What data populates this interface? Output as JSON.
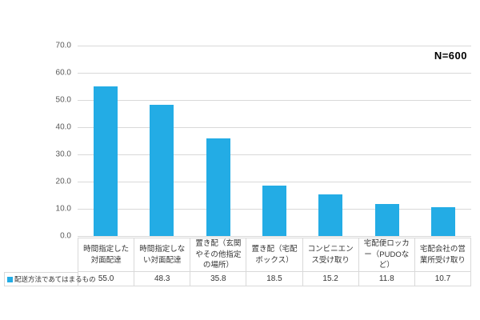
{
  "annotation": {
    "n_label": "N=600"
  },
  "legend": {
    "label": "配送方法であてはまるもの"
  },
  "colors": {
    "bar": "#23ACE5",
    "gridline": "#d9d9d9",
    "axis_text": "#595959",
    "table_border": "#d9d9d9",
    "table_text": "#333333",
    "background": "#ffffff"
  },
  "chart_data": {
    "type": "bar",
    "title": "",
    "xlabel": "",
    "ylabel": "",
    "categories": [
      "時間指定した対面配達",
      "時間指定しない対面配達",
      "置き配（玄関やその他指定の場所）",
      "置き配（宅配ボックス）",
      "コンビニエンス受け取り",
      "宅配便ロッカー（PUDOなど）",
      "宅配会社の営業所受け取り"
    ],
    "series": [
      {
        "name": "配送方法であてはまるもの",
        "values": [
          55.0,
          48.3,
          35.8,
          18.5,
          15.2,
          11.8,
          10.7
        ]
      }
    ],
    "ylim": [
      0,
      70
    ],
    "yticks": [
      0,
      10,
      20,
      30,
      40,
      50,
      60,
      70
    ],
    "ytick_format": "one-decimal",
    "grid": true,
    "legend_position": "bottom-left",
    "data_table": true,
    "annotations": [
      "N=600"
    ]
  }
}
